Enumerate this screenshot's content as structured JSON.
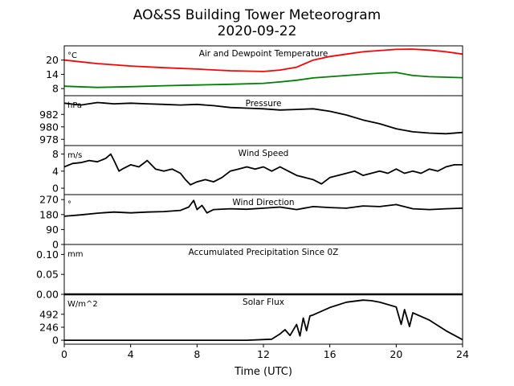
{
  "figure": {
    "title_line1": "AO&SS Building Tower Meteorogram",
    "title_line2": "2020-09-22",
    "xlabel": "Time (UTC)"
  },
  "chart_data": [
    {
      "type": "line",
      "title": "Air and Dewpoint Temperature",
      "unit": "°C",
      "ylim": [
        5,
        26
      ],
      "yticks": [
        8,
        14,
        20
      ],
      "x": [
        0,
        2,
        4,
        6,
        8,
        10,
        12,
        13,
        14,
        15,
        16,
        17,
        18,
        19,
        20,
        21,
        22,
        23,
        24
      ],
      "series": [
        {
          "color": "#ff0000",
          "values": [
            20,
            18.5,
            17.5,
            16.8,
            16.2,
            15.5,
            15.2,
            15.8,
            17,
            20,
            21.5,
            22.5,
            23.5,
            24,
            24.5,
            24.6,
            24.2,
            23.5,
            22.5
          ]
        },
        {
          "color": "#008000",
          "values": [
            9,
            8.5,
            8.8,
            9.2,
            9.5,
            9.8,
            10.2,
            10.8,
            11.5,
            12.5,
            13,
            13.5,
            14,
            14.5,
            14.8,
            13.5,
            13,
            12.8,
            12.6
          ]
        }
      ]
    },
    {
      "type": "line",
      "title": "Pressure",
      "unit": "hPa",
      "ylim": [
        977,
        985
      ],
      "yticks": [
        978,
        980,
        982
      ],
      "x": [
        0,
        1,
        2,
        3,
        4,
        5,
        6,
        7,
        8,
        9,
        10,
        11,
        12,
        13,
        14,
        15,
        16,
        17,
        18,
        19,
        20,
        21,
        22,
        23,
        24
      ],
      "series": [
        {
          "color": "#000000",
          "values": [
            983.8,
            983.5,
            983.9,
            983.7,
            983.8,
            983.7,
            983.6,
            983.5,
            983.6,
            983.4,
            983.1,
            983.0,
            982.9,
            982.7,
            982.8,
            982.9,
            982.5,
            981.9,
            981.1,
            980.5,
            979.7,
            979.2,
            979.0,
            978.9,
            979.1
          ]
        }
      ]
    },
    {
      "type": "line",
      "title": "Wind Speed",
      "unit": "m/s",
      "ylim": [
        -1.5,
        10
      ],
      "yticks": [
        0,
        4,
        8
      ],
      "x": [
        0,
        0.5,
        1,
        1.5,
        2,
        2.5,
        2.8,
        3,
        3.3,
        3.5,
        4,
        4.5,
        5,
        5.5,
        6,
        6.5,
        7,
        7.3,
        7.6,
        8,
        8.5,
        9,
        9.5,
        10,
        10.5,
        11,
        11.5,
        12,
        12.5,
        13,
        13.5,
        14,
        14.5,
        15,
        15.5,
        16,
        16.5,
        17,
        17.5,
        18,
        18.5,
        19,
        19.5,
        20,
        20.5,
        21,
        21.5,
        22,
        22.5,
        23,
        23.5,
        24
      ],
      "series": [
        {
          "color": "#000000",
          "values": [
            5,
            5.8,
            6,
            6.5,
            6.2,
            7,
            8,
            6.5,
            4,
            4.5,
            5.5,
            5,
            6.5,
            4.5,
            4,
            4.5,
            3.5,
            2,
            0.8,
            1.5,
            2,
            1.5,
            2.5,
            4,
            4.5,
            5,
            4.5,
            5,
            4,
            5,
            4,
            3,
            2.5,
            2,
            1,
            2.5,
            3,
            3.5,
            4,
            3,
            3.5,
            4,
            3.5,
            4.5,
            3.5,
            4,
            3.5,
            4.5,
            4,
            5,
            5.5,
            5.5
          ]
        }
      ]
    },
    {
      "type": "line",
      "title": "Wind Direction",
      "unit": "°",
      "ylim": [
        0,
        300
      ],
      "yticks": [
        0,
        90,
        180,
        270
      ],
      "x": [
        0,
        1,
        2,
        3,
        4,
        5,
        6,
        7,
        7.5,
        7.8,
        8,
        8.3,
        8.6,
        9,
        10,
        11,
        12,
        13,
        14,
        15,
        16,
        17,
        18,
        19,
        20,
        21,
        22,
        23,
        24
      ],
      "series": [
        {
          "color": "#000000",
          "values": [
            170,
            178,
            188,
            195,
            190,
            195,
            198,
            205,
            225,
            265,
            210,
            235,
            190,
            210,
            215,
            212,
            218,
            225,
            210,
            228,
            222,
            218,
            232,
            228,
            240,
            215,
            210,
            215,
            218
          ]
        }
      ]
    },
    {
      "type": "line",
      "title": "Accumulated Precipitation Since 0Z",
      "unit": "mm",
      "ylim": [
        0,
        0.125
      ],
      "yticks": [
        0.0,
        0.05,
        0.1
      ],
      "ytick_labels": [
        "0.00",
        "0.05",
        "0.10"
      ],
      "x": [
        0,
        24
      ],
      "series": [
        {
          "color": "#000000",
          "values": [
            0,
            0
          ]
        }
      ]
    },
    {
      "type": "line",
      "title": "Solar Flux",
      "unit": "W/m^2",
      "ylim": [
        -75,
        870
      ],
      "yticks": [
        0,
        246,
        492
      ],
      "x": [
        0,
        6,
        11,
        12.5,
        13,
        13.3,
        13.6,
        14,
        14.2,
        14.4,
        14.6,
        14.8,
        15,
        16,
        17,
        18,
        18.5,
        19,
        20,
        20.3,
        20.5,
        20.8,
        21,
        22,
        23,
        24
      ],
      "series": [
        {
          "color": "#000000",
          "values": [
            0,
            0,
            0,
            20,
            120,
            200,
            90,
            300,
            80,
            420,
            180,
            460,
            480,
            620,
            720,
            760,
            750,
            720,
            630,
            300,
            580,
            260,
            520,
            380,
            180,
            10
          ]
        }
      ]
    }
  ],
  "x_axis": {
    "xlim": [
      0,
      24
    ],
    "ticks": [
      0,
      4,
      8,
      12,
      16,
      20,
      24
    ]
  }
}
